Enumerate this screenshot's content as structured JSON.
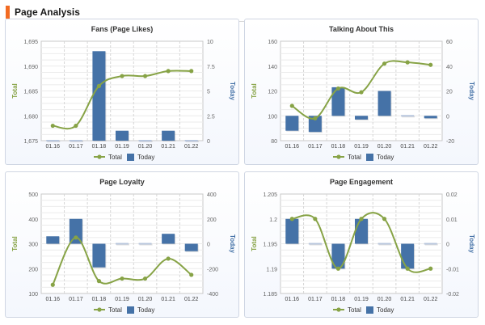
{
  "page": {
    "title": "Page Analysis"
  },
  "colors": {
    "total": "#87a346",
    "today": "#4572a7",
    "today_zero": "#b8c6dd"
  },
  "legend": {
    "total_label": "Total",
    "today_label": "Today"
  },
  "chart_data": [
    {
      "type": "bar+line",
      "title": "Fans (Page Likes)",
      "categories": [
        "01.16",
        "01.17",
        "01.18",
        "01.19",
        "01.20",
        "01.21",
        "01.22"
      ],
      "ylabel_left": "Total",
      "ylabel_right": "Today",
      "ylim_left": [
        1675,
        1695
      ],
      "yticks_left": [
        "1,675",
        "1,680",
        "1,685",
        "1,690",
        "1,695"
      ],
      "ylim_right": [
        0,
        10
      ],
      "yticks_right": [
        "0",
        "2.5",
        "5",
        "7.5",
        "10"
      ],
      "series": [
        {
          "name": "Total",
          "type": "line",
          "values": [
            1678,
            1678,
            1686,
            1688,
            1688,
            1689,
            1689
          ]
        },
        {
          "name": "Today",
          "type": "bar",
          "values": [
            0,
            0,
            9,
            1,
            0,
            1,
            0
          ]
        }
      ],
      "legend": "bottom-center",
      "grid": true
    },
    {
      "type": "bar+line",
      "title": "Talking About This",
      "categories": [
        "01.16",
        "01.17",
        "01.18",
        "01.19",
        "01.20",
        "01.21",
        "01.22"
      ],
      "ylabel_left": "Total",
      "ylabel_right": "Today",
      "ylim_left": [
        80,
        160
      ],
      "yticks_left": [
        "80",
        "100",
        "120",
        "140",
        "160"
      ],
      "ylim_right": [
        -20,
        60
      ],
      "yticks_right": [
        "-20",
        "0",
        "20",
        "40",
        "60"
      ],
      "series": [
        {
          "name": "Total",
          "type": "line",
          "values": [
            108,
            98,
            122,
            119,
            142,
            143,
            141
          ]
        },
        {
          "name": "Today",
          "type": "bar",
          "values": [
            -12,
            -13,
            23,
            -3,
            20,
            1,
            -2
          ]
        }
      ],
      "legend": "bottom-center",
      "grid": true
    },
    {
      "type": "bar+line",
      "title": "Page Loyalty",
      "categories": [
        "01.16",
        "01.17",
        "01.18",
        "01.19",
        "01.20",
        "01.21",
        "01.22"
      ],
      "ylabel_left": "Total",
      "ylabel_right": "Today",
      "ylim_left": [
        100,
        500
      ],
      "yticks_left": [
        "100",
        "200",
        "300",
        "400",
        "500"
      ],
      "ylim_right": [
        -400,
        400
      ],
      "yticks_right": [
        "-400",
        "-200",
        "0",
        "200",
        "400"
      ],
      "series": [
        {
          "name": "Total",
          "type": "line",
          "values": [
            135,
            325,
            150,
            160,
            160,
            240,
            175
          ]
        },
        {
          "name": "Today",
          "type": "bar",
          "values": [
            60,
            200,
            -190,
            10,
            0,
            80,
            -60
          ]
        }
      ],
      "legend": "bottom-center",
      "grid": true
    },
    {
      "type": "bar+line",
      "title": "Page Engagement",
      "categories": [
        "01.16",
        "01.17",
        "01.18",
        "01.19",
        "01.20",
        "01.21",
        "01.22"
      ],
      "ylabel_left": "Total",
      "ylabel_right": "Today",
      "ylim_left": [
        1.185,
        1.205
      ],
      "yticks_left": [
        "1.185",
        "1.19",
        "1.195",
        "1.2",
        "1.205"
      ],
      "ylim_right": [
        -0.02,
        0.02
      ],
      "yticks_right": [
        "-0.02",
        "-0.01",
        "0",
        "0.01",
        "0.02"
      ],
      "series": [
        {
          "name": "Total",
          "type": "line",
          "values": [
            1.2,
            1.2,
            1.19,
            1.2,
            1.2,
            1.19,
            1.19
          ]
        },
        {
          "name": "Today",
          "type": "bar",
          "values": [
            0.01,
            0,
            -0.01,
            0.01,
            0,
            -0.01,
            0
          ]
        }
      ],
      "legend": "bottom-center",
      "grid": true
    }
  ]
}
